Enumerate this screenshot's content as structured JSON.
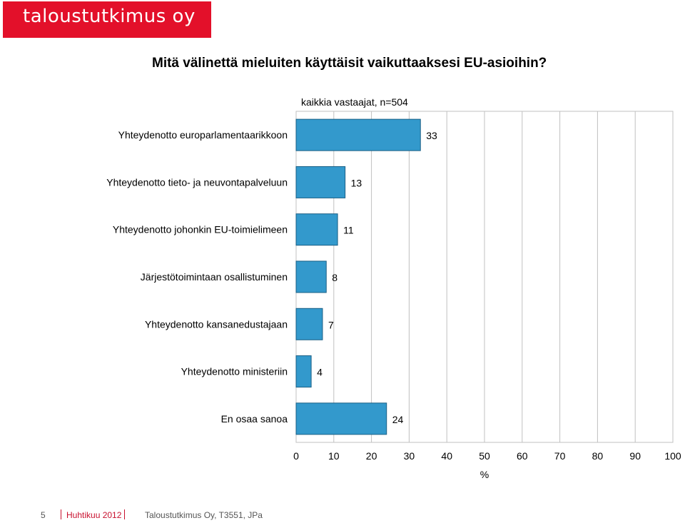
{
  "brand": {
    "logo_text": "taloustutkimus oy",
    "color": "#e3102a"
  },
  "question": "Mitä välinettä mieluiten käyttäisit vaikuttaaksesi EU-asioihin?",
  "subtitle": "kaikkia vastaajat, n=504",
  "chart_data": {
    "type": "bar",
    "orientation": "horizontal",
    "categories": [
      "Yhteydenotto europarlamentaarikkoon",
      "Yhteydenotto tieto- ja neuvontapalveluun",
      "Yhteydenotto johonkin EU-toimielimeen",
      "Järjestötoimintaan osallistuminen",
      "Yhteydenotto kansanedustajaan",
      "Yhteydenotto ministeriin",
      "En osaa sanoa"
    ],
    "values": [
      33,
      13,
      11,
      8,
      7,
      4,
      24
    ],
    "data_labels": [
      "33",
      "13",
      "11",
      "8",
      "7",
      "4",
      "24"
    ],
    "xlim": [
      0,
      100
    ],
    "xticks": [
      "0",
      "10",
      "20",
      "30",
      "40",
      "50",
      "60",
      "70",
      "80",
      "90",
      "100"
    ],
    "xlabel": "%",
    "grid": true,
    "bar_color": "#3399cc"
  },
  "footer": {
    "page": "5",
    "date": "Huhtikuu 2012",
    "source": "Taloustutkimus Oy, T3551, JPa"
  }
}
